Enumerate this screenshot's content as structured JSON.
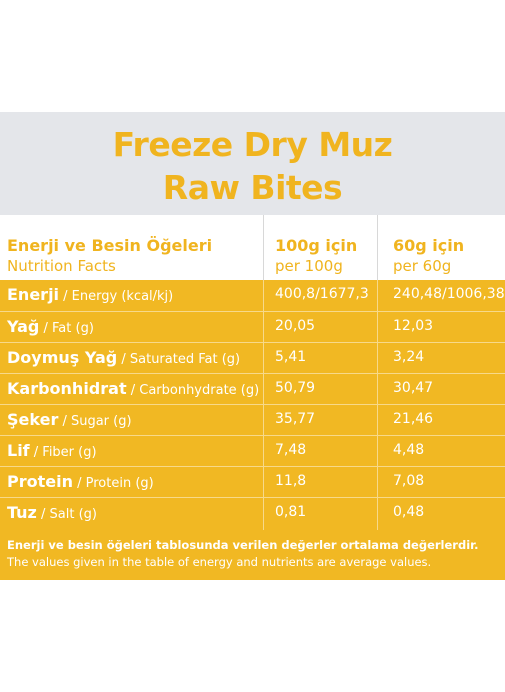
{
  "title": {
    "line1": "Freeze Dry Muz",
    "line2": "Raw Bites"
  },
  "columns": {
    "nutrients": {
      "tr": "Enerji ve Besin Öğeleri",
      "en": "Nutrition Facts"
    },
    "per100": {
      "tr": "100g için",
      "en": "per 100g"
    },
    "per60": {
      "tr": "60g için",
      "en": "per 60g"
    }
  },
  "rows": [
    {
      "tr": "Enerji",
      "en": " / Energy (kcal/kj)",
      "v100": "400,8/1677,3",
      "v60": "240,48/1006,38"
    },
    {
      "tr": "Yağ",
      "en": " / Fat (g)",
      "v100": "20,05",
      "v60": "12,03"
    },
    {
      "tr": "Doymuş Yağ",
      "en": " / Saturated Fat (g)",
      "v100": "5,41",
      "v60": "3,24"
    },
    {
      "tr": "Karbonhidrat",
      "en": " / Carbonhydrate (g)",
      "v100": "50,79",
      "v60": "30,47"
    },
    {
      "tr": "Şeker",
      "en": " / Sugar (g)",
      "v100": "35,77",
      "v60": "21,46"
    },
    {
      "tr": "Lif",
      "en": " / Fiber (g)",
      "v100": "7,48",
      "v60": "4,48"
    },
    {
      "tr": "Protein",
      "en": " / Protein (g)",
      "v100": "11,8",
      "v60": "7,08"
    },
    {
      "tr": "Tuz",
      "en": " / Salt (g)",
      "v100": "0,81",
      "v60": "0,48"
    }
  ],
  "footer": {
    "tr": "Enerji ve besin öğeleri tablosunda verilen değerler ortalama değerlerdir.",
    "en": "The values given in the table of energy and nutrients are average values."
  },
  "colors": {
    "accent": "#f0b41f",
    "header_bg": "#e4e6ea",
    "table_bg": "#f1b823"
  }
}
